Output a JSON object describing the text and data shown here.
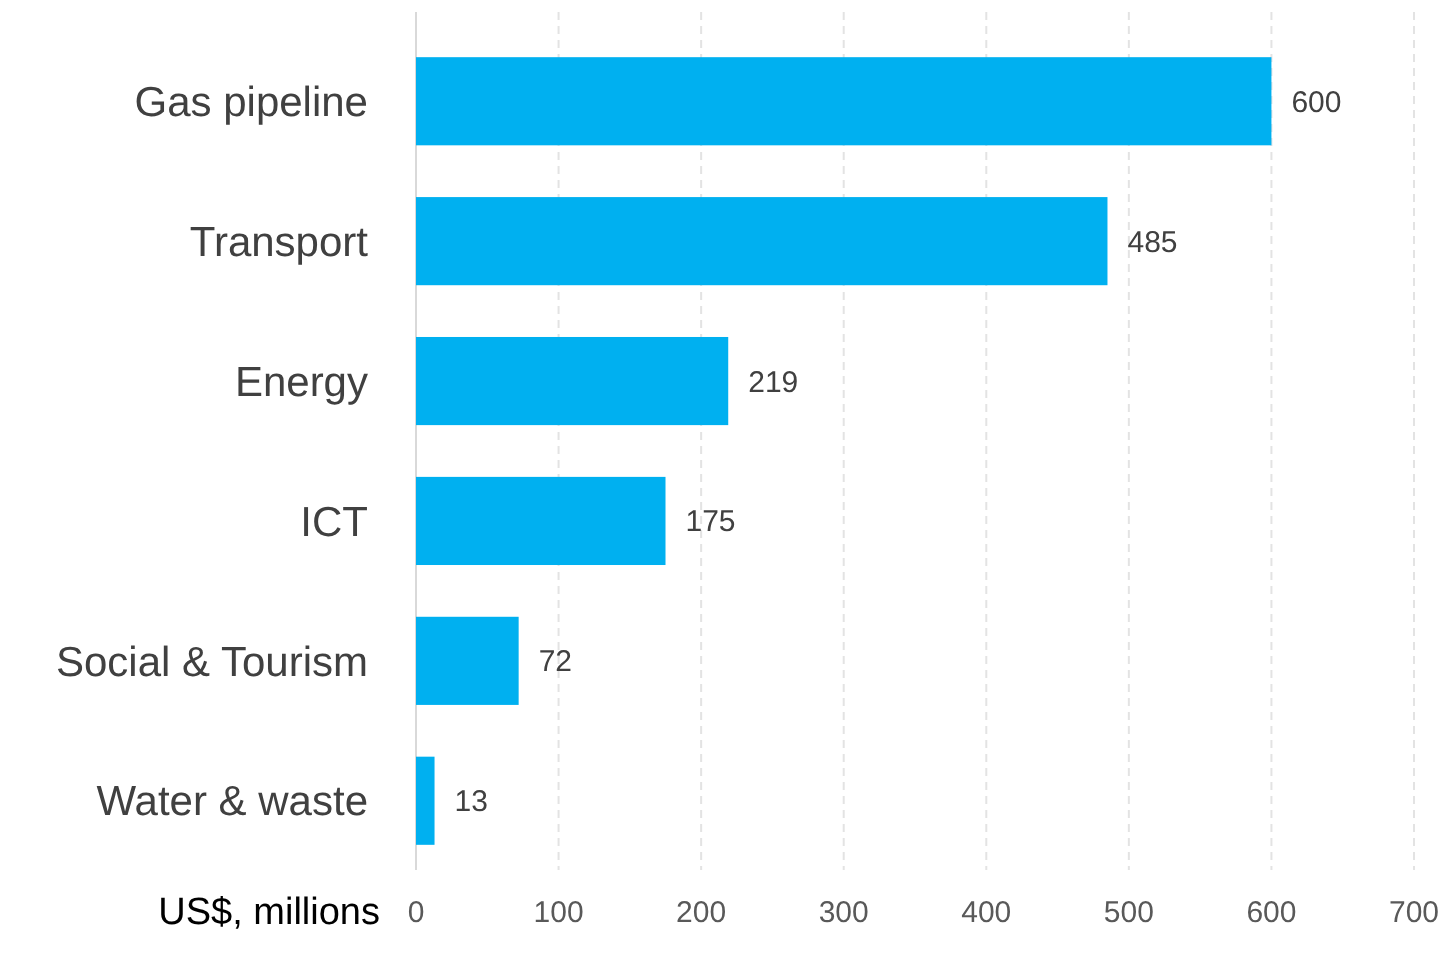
{
  "chart_data": {
    "type": "bar",
    "orientation": "horizontal",
    "categories": [
      "Gas pipeline",
      "Transport",
      "Energy",
      "ICT",
      "Social & Tourism",
      "Water & waste"
    ],
    "values": [
      600,
      485,
      219,
      175,
      72,
      13
    ],
    "color": "#00b0f0",
    "xlim": [
      0,
      700
    ],
    "xticks": [
      0,
      100,
      200,
      300,
      400,
      500,
      600,
      700
    ],
    "xlabel": "US$, millions",
    "grid": "x",
    "data_labels": true
  }
}
